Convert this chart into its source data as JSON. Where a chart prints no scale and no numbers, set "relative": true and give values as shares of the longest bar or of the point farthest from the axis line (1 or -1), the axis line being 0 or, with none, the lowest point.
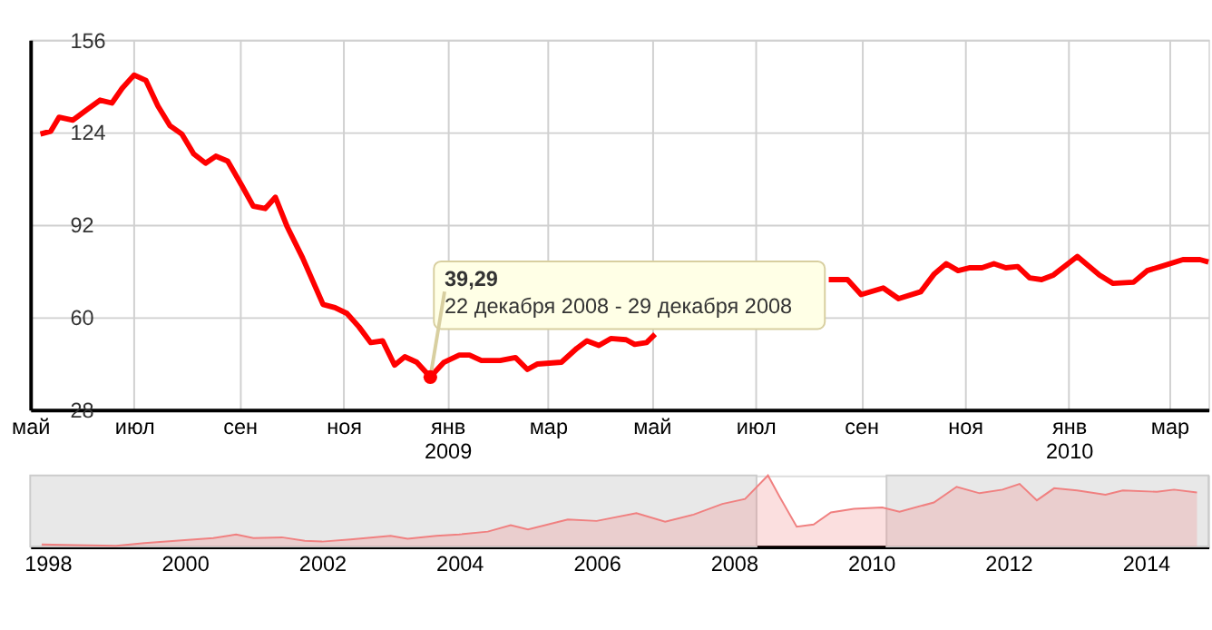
{
  "chart_data": [
    {
      "type": "line",
      "x": [
        "2008-05-07",
        "2008-05-13",
        "2008-05-18",
        "2008-05-26",
        "2008-06-04",
        "2008-06-11",
        "2008-06-18",
        "2008-06-24",
        "2008-07-01",
        "2008-07-08",
        "2008-07-15",
        "2008-07-22",
        "2008-07-29",
        "2008-08-05",
        "2008-08-12",
        "2008-08-18",
        "2008-08-25",
        "2008-09-02",
        "2008-09-09",
        "2008-09-16",
        "2008-09-22",
        "2008-09-29",
        "2008-10-08",
        "2008-10-20",
        "2008-10-27",
        "2008-11-03",
        "2008-11-10",
        "2008-11-17",
        "2008-11-24",
        "2008-12-01",
        "2008-12-07",
        "2008-12-14",
        "2008-12-22",
        "2008-12-30",
        "2009-01-08",
        "2009-01-14",
        "2009-01-21",
        "2009-02-01",
        "2009-02-10",
        "2009-02-17",
        "2009-02-23",
        "2009-03-09",
        "2009-03-18",
        "2009-03-24",
        "2009-03-31",
        "2009-04-07",
        "2009-04-16",
        "2009-04-21",
        "2009-04-28",
        "2009-05-03",
        "2009-06-19",
        "2009-08-13",
        "2009-08-24",
        "2009-09-01",
        "2009-09-14",
        "2009-09-23",
        "2009-10-06",
        "2009-10-14",
        "2009-10-21",
        "2009-10-28",
        "2009-11-04",
        "2009-11-11",
        "2009-11-18",
        "2009-11-25",
        "2009-12-02",
        "2009-12-09",
        "2009-12-16",
        "2009-12-23",
        "2010-01-06",
        "2010-01-19",
        "2010-01-27",
        "2010-02-08",
        "2010-02-16",
        "2010-02-24",
        "2010-03-09",
        "2010-03-19",
        "2010-03-24"
      ],
      "series": [
        {
          "color": "#ff0000",
          "values": [
            123.4,
            124.3,
            129.2,
            128.2,
            132.1,
            135.1,
            134.1,
            139.2,
            143.8,
            141.9,
            133.1,
            126.3,
            123.4,
            116.5,
            113.3,
            115.7,
            114.0,
            105.8,
            98.4,
            97.6,
            101.5,
            91.2,
            80.5,
            64.4,
            63.3,
            61.3,
            56.7,
            51.2,
            51.8,
            43.4,
            46.3,
            44.4,
            39.29,
            44.4,
            46.9,
            46.9,
            45.0,
            45.0,
            46.0,
            41.9,
            43.8,
            44.4,
            49.2,
            51.8,
            50.2,
            52.6,
            52.2,
            50.6,
            51.2,
            54.1,
            null,
            73.0,
            73.0,
            67.8,
            70.1,
            66.4,
            68.8,
            75.0,
            78.5,
            76.1,
            77.1,
            77.1,
            78.5,
            77.1,
            77.5,
            73.6,
            73.0,
            74.6,
            81.0,
            74.6,
            71.7,
            72.1,
            76.1,
            77.5,
            79.9,
            79.9,
            79.1
          ]
        }
      ],
      "xlim": [
        "2008-05-01",
        "2010-03-24"
      ],
      "xticks": [
        {
          "value": "2008-05-01",
          "label": "май"
        },
        {
          "value": "2008-07-01",
          "label": "июл"
        },
        {
          "value": "2008-09-01",
          "label": "сен"
        },
        {
          "value": "2008-11-01",
          "label": "ноя"
        },
        {
          "value": "2009-01-01",
          "label": "янв\n2009"
        },
        {
          "value": "2009-03-01",
          "label": "мар"
        },
        {
          "value": "2009-05-01",
          "label": "май"
        },
        {
          "value": "2009-07-01",
          "label": "июл"
        },
        {
          "value": "2009-09-01",
          "label": "сен"
        },
        {
          "value": "2009-11-01",
          "label": "ноя"
        },
        {
          "value": "2010-01-01",
          "label": "янв\n2010"
        },
        {
          "value": "2010-03-01",
          "label": "мар"
        }
      ],
      "ylim": [
        28,
        156
      ],
      "yticks": [
        28,
        60,
        92,
        124,
        156
      ],
      "grid": true,
      "annotations": [
        {
          "text": "39,29",
          "x": "2008-12-22",
          "y": 39.29
        },
        {
          "text": "22 декабря 2008 - 29 декабря 2008",
          "x": "2008-12-22",
          "y": 39.29
        }
      ]
    },
    {
      "type": "area",
      "relative": true,
      "x": [
        "1997-12-01",
        "1998-06-01",
        "1999-01-01",
        "1999-06-01",
        "2000-01-01",
        "2000-06-01",
        "2000-10-01",
        "2001-01-01",
        "2001-06-01",
        "2001-10-01",
        "2002-01-01",
        "2002-06-01",
        "2003-01-01",
        "2003-04-01",
        "2003-09-01",
        "2004-01-01",
        "2004-06-01",
        "2004-10-01",
        "2005-01-01",
        "2005-08-01",
        "2006-01-01",
        "2006-08-01",
        "2007-01-01",
        "2007-06-01",
        "2007-11-01",
        "2008-03-01",
        "2008-07-01",
        "2008-09-01",
        "2008-12-01",
        "2009-03-01",
        "2009-06-01",
        "2009-10-01",
        "2010-03-01",
        "2010-06-01",
        "2010-12-01",
        "2011-04-01",
        "2011-08-01",
        "2011-12-01",
        "2012-03-01",
        "2012-06-01",
        "2012-09-01",
        "2013-01-01",
        "2013-06-01",
        "2013-09-01",
        "2014-03-01",
        "2014-06-01",
        "2014-10-01"
      ],
      "series": [
        {
          "color": "#f08080",
          "values": [
            0.03,
            0.02,
            0.01,
            0.05,
            0.09,
            0.12,
            0.17,
            0.12,
            0.13,
            0.08,
            0.07,
            0.1,
            0.15,
            0.11,
            0.15,
            0.17,
            0.21,
            0.3,
            0.24,
            0.38,
            0.36,
            0.47,
            0.35,
            0.45,
            0.6,
            0.67,
            1,
            0.7,
            0.28,
            0.31,
            0.48,
            0.53,
            0.55,
            0.49,
            0.62,
            0.84,
            0.75,
            0.8,
            0.88,
            0.65,
            0.82,
            0.79,
            0.73,
            0.79,
            0.77,
            0.8,
            0.76
          ]
        }
      ],
      "xlim": [
        "1997-10-01",
        "2014-12-01"
      ],
      "xticks": [
        {
          "value": "1998-01-01",
          "label": "1998"
        },
        {
          "value": "2000-01-01",
          "label": "2000"
        },
        {
          "value": "2002-01-01",
          "label": "2002"
        },
        {
          "value": "2004-01-01",
          "label": "2004"
        },
        {
          "value": "2006-01-01",
          "label": "2006"
        },
        {
          "value": "2008-01-01",
          "label": "2008"
        },
        {
          "value": "2010-01-01",
          "label": "2010"
        },
        {
          "value": "2012-01-01",
          "label": "2012"
        },
        {
          "value": "2014-01-01",
          "label": "2014"
        }
      ],
      "bands": [
        {
          "axis": "x",
          "from": "1997-10-01",
          "to": "2008-05-01",
          "color": "#e8e8e8"
        },
        {
          "axis": "x",
          "from": "2010-03-24",
          "to": "2014-12-01",
          "color": "#e8e8e8"
        }
      ]
    }
  ]
}
